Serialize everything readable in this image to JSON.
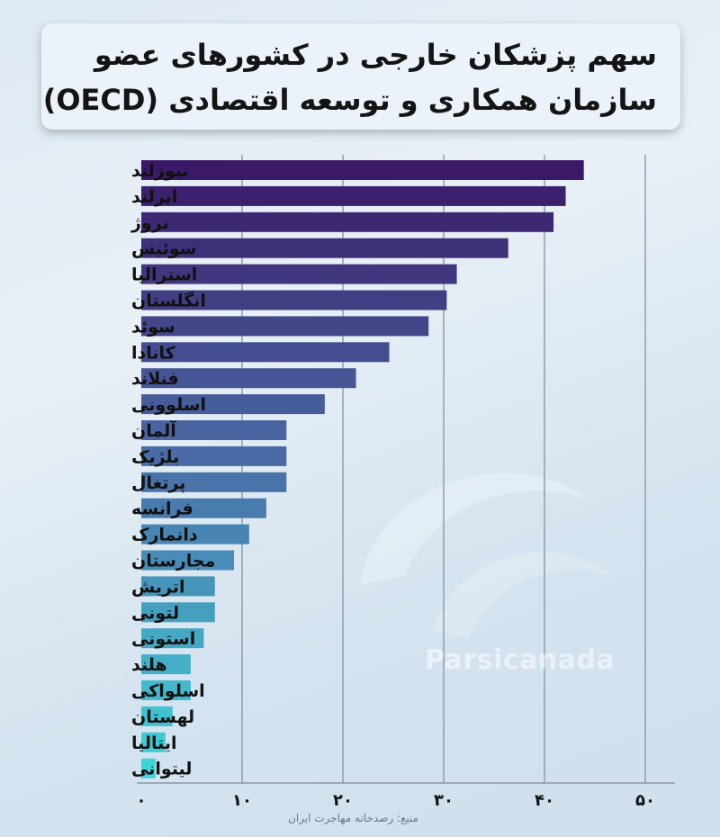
{
  "title": {
    "line1": "سهم پزشکان خارجی در کشورهای عضو",
    "line2": "سازمان همکاری و توسعه اقتصادی (OECD)"
  },
  "watermark": "Parsicanada",
  "source": "منبع: رصدخانه مهاجرت ایران",
  "chart_data": {
    "type": "bar",
    "orientation": "horizontal",
    "categories": [
      "نیوزلند",
      "ایرلند",
      "نروژ",
      "سوئیس",
      "استرالیا",
      "انگلستان",
      "سوئد",
      "کانادا",
      "فنلاند",
      "اسلوونی",
      "آلمان",
      "بلژیک",
      "پرتغال",
      "فرانسه",
      "دانمارک",
      "مجارستان",
      "اتریش",
      "لتونی",
      "استونی",
      "هلند",
      "اسلواکی",
      "لهستان",
      "ایتالیا",
      "لیتوانی"
    ],
    "values": [
      43.9,
      42.1,
      40.9,
      36.4,
      31.3,
      30.3,
      28.5,
      24.6,
      21.3,
      18.2,
      14.4,
      14.4,
      14.4,
      12.4,
      10.7,
      9.2,
      7.3,
      7.3,
      6.2,
      4.9,
      4.9,
      3.1,
      2.4,
      1.4
    ],
    "xticks": [
      "۰",
      "۱۰",
      "۲۰",
      "۳۰",
      "۴۰",
      "۵۰"
    ],
    "xtick_values": [
      0,
      10,
      20,
      30,
      40,
      50
    ],
    "xlim": [
      0,
      50
    ],
    "grid": true,
    "colors": {
      "top": "#3a1968",
      "middle": "#4b6fa8",
      "bottom": "#3ed3d8"
    }
  }
}
